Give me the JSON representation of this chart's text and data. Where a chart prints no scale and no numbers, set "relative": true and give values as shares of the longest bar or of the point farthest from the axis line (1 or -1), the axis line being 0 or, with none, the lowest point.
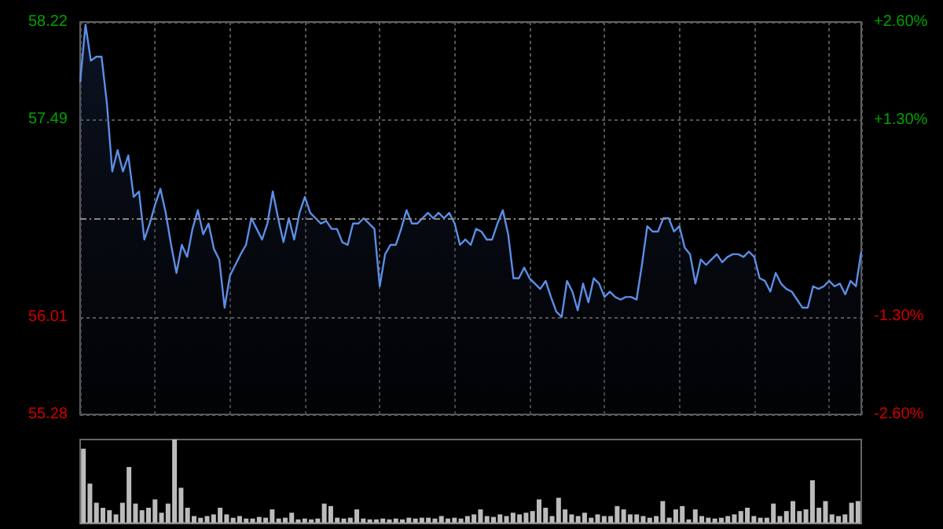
{
  "chart_data": [
    {
      "type": "area",
      "categories": [
        null,
        null,
        null,
        null,
        null,
        null,
        null,
        null,
        null,
        null,
        null,
        null,
        null,
        null,
        null,
        null,
        null,
        null,
        null,
        null,
        null,
        null,
        null,
        null,
        null,
        null,
        null,
        null,
        null,
        null,
        null,
        null,
        null,
        null,
        null,
        null,
        null,
        null,
        null,
        null,
        null,
        null,
        null,
        null,
        null,
        null,
        null,
        null,
        null,
        null,
        null,
        null,
        null,
        null,
        null,
        null,
        null,
        null,
        null,
        null,
        null,
        null,
        null,
        null,
        null,
        null,
        null,
        null,
        null,
        null,
        null,
        null,
        null,
        null,
        null,
        null,
        null,
        null,
        null,
        null,
        null,
        null,
        null,
        null,
        null,
        null,
        null,
        null,
        null,
        null,
        null,
        null,
        null,
        null,
        null,
        null,
        null,
        null,
        null,
        null,
        null,
        null,
        null,
        null,
        null,
        null,
        null,
        null,
        null,
        null,
        null,
        null,
        null,
        null,
        null,
        null,
        null,
        null,
        null,
        null,
        null,
        null,
        null,
        null,
        null,
        null,
        null,
        null,
        null,
        null,
        null,
        null,
        null,
        null,
        null,
        null,
        null,
        null,
        null,
        null,
        null,
        null,
        null,
        null,
        null,
        null,
        null
      ],
      "series": [
        {
          "color": "#5b8ee6",
          "values": [
            57.77,
            58.2,
            57.93,
            57.96,
            57.96,
            57.61,
            57.1,
            57.26,
            57.1,
            57.22,
            56.91,
            56.95,
            56.59,
            56.71,
            56.85,
            56.97,
            56.79,
            56.55,
            56.34,
            56.55,
            56.46,
            56.67,
            56.81,
            56.63,
            56.71,
            56.52,
            56.44,
            56.08,
            56.32,
            56.4,
            56.48,
            56.55,
            56.75,
            56.67,
            56.59,
            56.71,
            56.95,
            56.75,
            56.57,
            56.75,
            56.59,
            56.79,
            56.91,
            56.79,
            56.75,
            56.71,
            56.73,
            56.67,
            56.67,
            56.57,
            56.55,
            56.71,
            56.71,
            56.75,
            56.71,
            56.67,
            56.24,
            56.48,
            56.55,
            56.55,
            56.67,
            56.81,
            56.71,
            56.71,
            56.75,
            56.79,
            56.75,
            56.79,
            56.75,
            56.79,
            56.71,
            56.55,
            56.59,
            56.55,
            56.67,
            56.65,
            56.59,
            56.59,
            56.71,
            56.81,
            56.63,
            56.3,
            56.3,
            56.38,
            56.3,
            56.26,
            56.22,
            56.28,
            56.16,
            56.05,
            56.01,
            56.28,
            56.2,
            56.06,
            56.26,
            56.12,
            56.3,
            56.26,
            56.16,
            56.2,
            56.16,
            56.14,
            56.16,
            56.16,
            56.14,
            56.4,
            56.69,
            56.65,
            56.65,
            56.75,
            56.75,
            56.65,
            56.69,
            56.53,
            56.48,
            56.26,
            56.44,
            56.4,
            56.44,
            56.48,
            56.42,
            56.46,
            56.48,
            56.48,
            56.46,
            56.5,
            56.46,
            56.3,
            56.28,
            56.2,
            56.34,
            56.26,
            56.22,
            56.2,
            56.14,
            56.08,
            56.08,
            56.24,
            56.22,
            56.24,
            56.28,
            56.24,
            56.26,
            56.18,
            56.28,
            56.24,
            56.5
          ]
        }
      ],
      "ylim": [
        55.28,
        58.22
      ],
      "yticks": [
        55.28,
        56.01,
        57.49,
        58.22
      ],
      "y2lim": [
        -2.6,
        2.6
      ],
      "y2ticks": [
        {
          "value": -2.6,
          "label": "-2.60%"
        },
        {
          "value": -1.3,
          "label": "-1.30%"
        },
        {
          "value": 1.3,
          "label": "+1.30%"
        },
        {
          "value": 2.6,
          "label": "+2.60%"
        }
      ],
      "ref_lines": [
        {
          "axis": "y",
          "value": 56.75
        }
      ],
      "grid": true,
      "marker": "none",
      "line_style": "solid"
    },
    {
      "type": "bar",
      "relative": true,
      "color": "#bbbbbb",
      "categories": [
        null,
        null,
        null,
        null,
        null,
        null,
        null,
        null,
        null,
        null,
        null,
        null,
        null,
        null,
        null,
        null,
        null,
        null,
        null,
        null,
        null,
        null,
        null,
        null,
        null,
        null,
        null,
        null,
        null,
        null,
        null,
        null,
        null,
        null,
        null,
        null,
        null,
        null,
        null,
        null,
        null,
        null,
        null,
        null,
        null,
        null,
        null,
        null,
        null,
        null,
        null,
        null,
        null,
        null,
        null,
        null,
        null,
        null,
        null,
        null,
        null,
        null,
        null,
        null,
        null,
        null,
        null,
        null,
        null,
        null,
        null,
        null,
        null,
        null,
        null,
        null,
        null,
        null,
        null,
        null,
        null,
        null,
        null,
        null,
        null,
        null,
        null,
        null,
        null,
        null,
        null,
        null,
        null,
        null,
        null,
        null,
        null,
        null,
        null,
        null,
        null,
        null,
        null,
        null,
        null,
        null,
        null,
        null,
        null,
        null,
        null,
        null,
        null,
        null,
        null,
        null,
        null,
        null,
        null,
        null
      ],
      "values": [
        0.89,
        0.47,
        0.24,
        0.18,
        0.15,
        0.1,
        0.24,
        0.67,
        0.23,
        0.15,
        0.18,
        0.28,
        0.12,
        0.23,
        1,
        0.42,
        0.18,
        0.08,
        0.06,
        0.08,
        0.1,
        0.18,
        0.1,
        0.06,
        0.08,
        0.05,
        0.05,
        0.07,
        0.06,
        0.16,
        0.05,
        0.06,
        0.12,
        0.04,
        0.05,
        0.04,
        0.05,
        0.23,
        0.2,
        0.06,
        0.05,
        0.06,
        0.16,
        0.05,
        0.04,
        0.04,
        0.05,
        0.04,
        0.05,
        0.04,
        0.06,
        0.05,
        0.06,
        0.06,
        0.05,
        0.08,
        0.05,
        0.06,
        0.05,
        0.08,
        0.1,
        0.16,
        0.08,
        0.07,
        0.1,
        0.08,
        0.12,
        0.1,
        0.12,
        0.14,
        0.28,
        0.18,
        0.08,
        0.3,
        0.16,
        0.1,
        0.08,
        0.12,
        0.06,
        0.1,
        0.08,
        0.08,
        0.2,
        0.16,
        0.1,
        0.1,
        0.08,
        0.06,
        0.08,
        0.26,
        0.06,
        0.16,
        0.2,
        0.04,
        0.16,
        0.08,
        0.06,
        0.05,
        0.06,
        0.08,
        0.1,
        0.14,
        0.18,
        0.08,
        0.06,
        0.06,
        0.23,
        0.08,
        0.14,
        0.26,
        0.14,
        0.16,
        0.51,
        0.18,
        0.26,
        0.1,
        0.08,
        0.1,
        0.24,
        0.26
      ]
    }
  ]
}
